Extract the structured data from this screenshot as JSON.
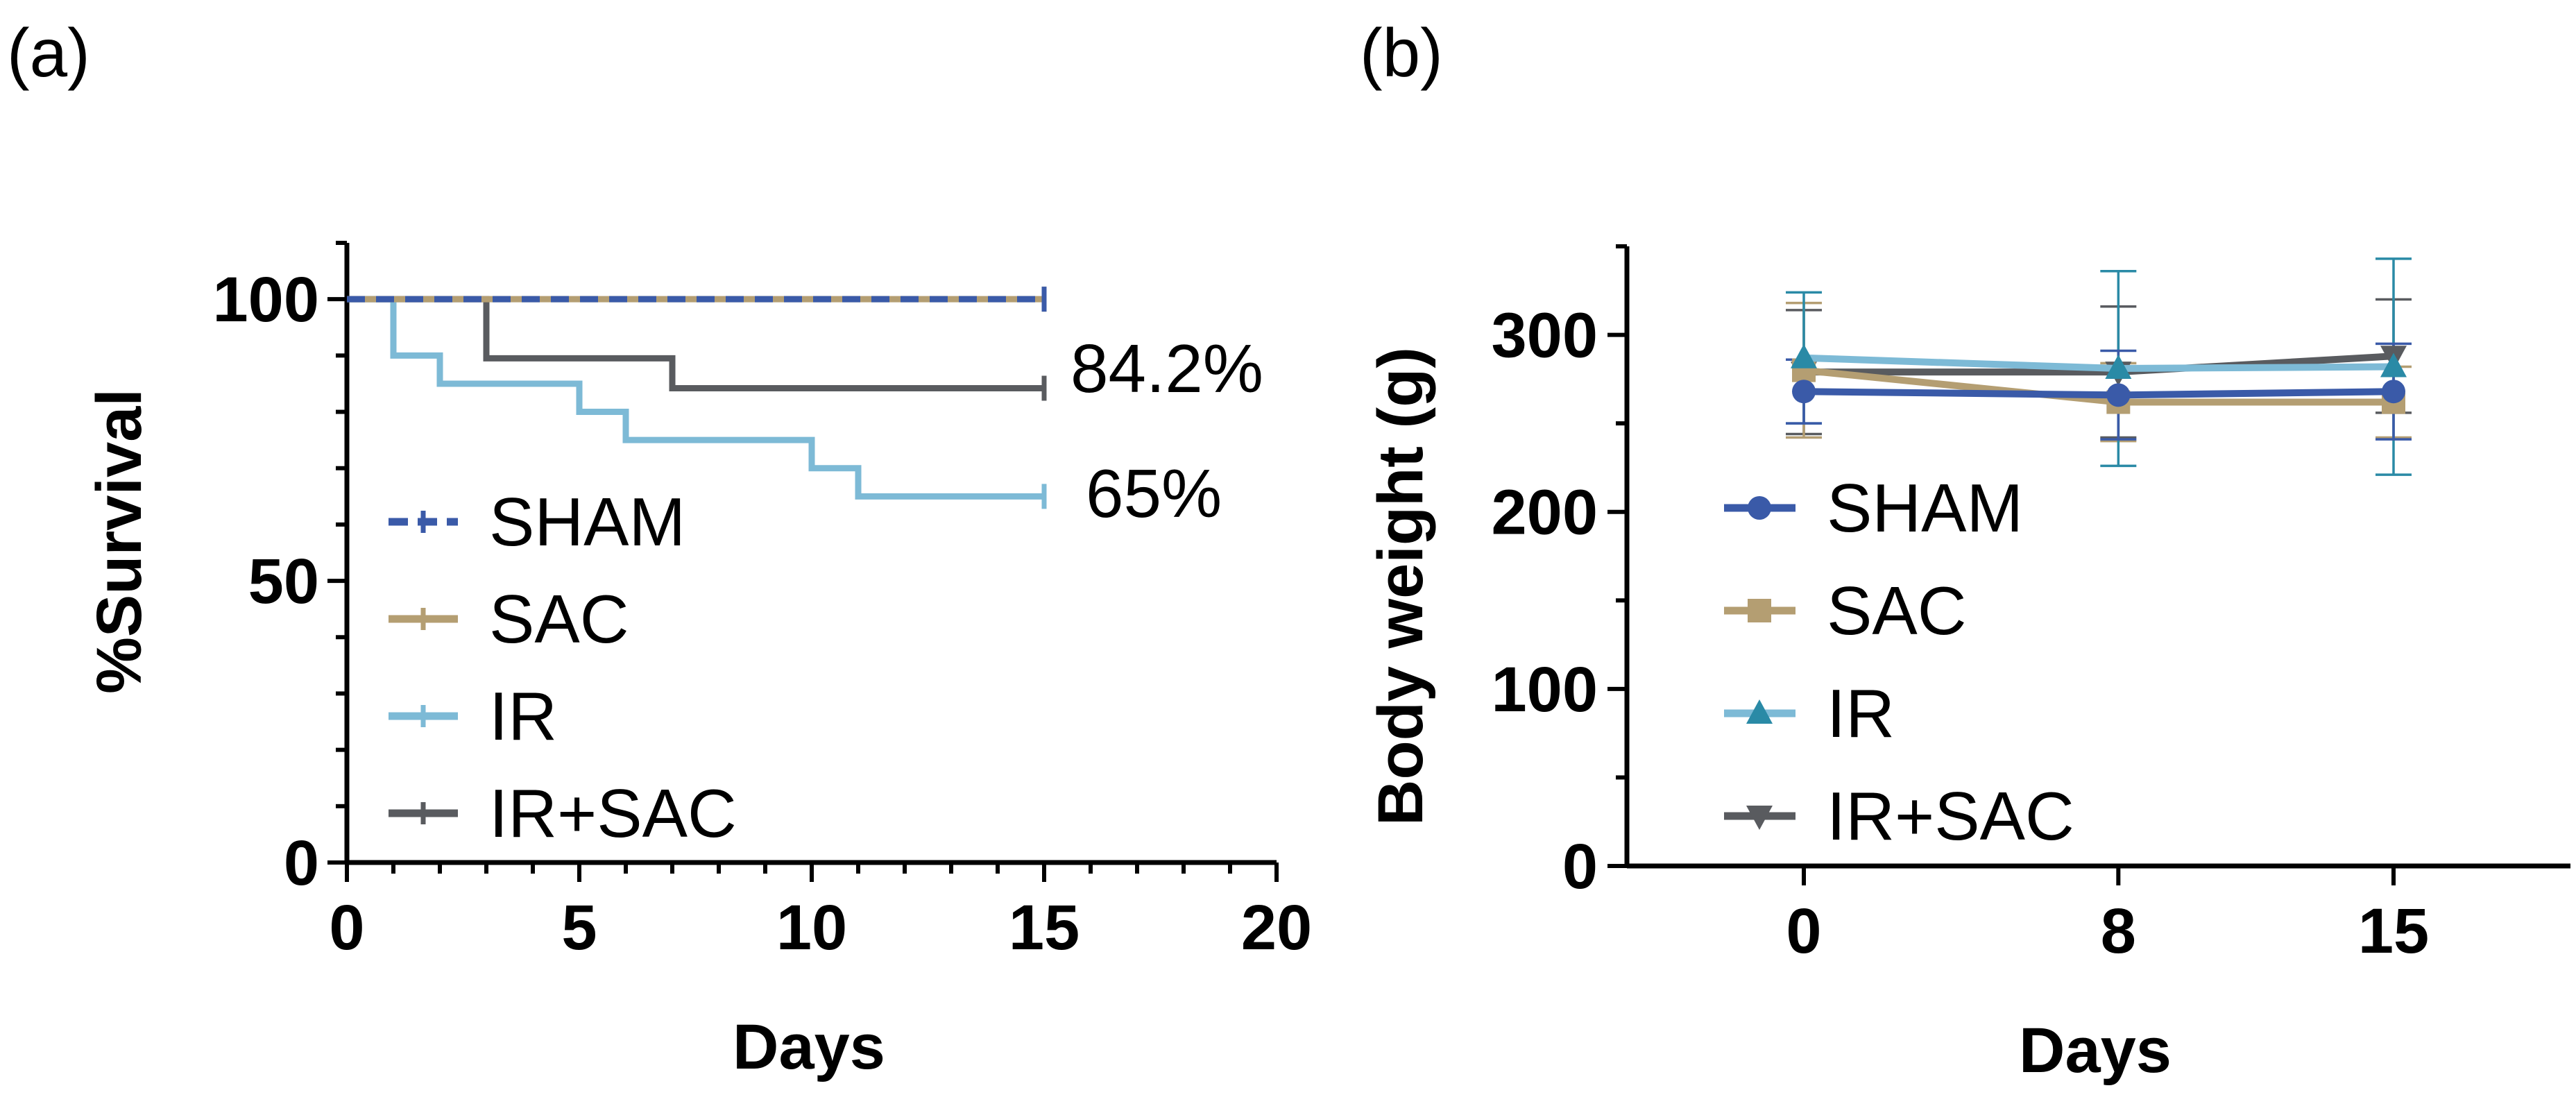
{
  "chart_data": [
    {
      "panel_label": "(a)",
      "type": "line",
      "subtype": "kaplan-meier step",
      "xlabel": "Days",
      "ylabel": "%Survival",
      "xlim": [
        0,
        20
      ],
      "ylim": [
        0,
        110
      ],
      "xticks": [
        0,
        5,
        10,
        15,
        20
      ],
      "yticks": [
        0,
        50,
        100
      ],
      "series": [
        {
          "name": "SHAM",
          "color": "#3a5aa8",
          "dashed": true,
          "steps": [
            [
              0,
              100
            ],
            [
              15,
              100
            ]
          ]
        },
        {
          "name": "SAC",
          "color": "#b49e72",
          "dashed": false,
          "steps": [
            [
              0,
              100
            ],
            [
              15,
              100
            ]
          ]
        },
        {
          "name": "IR",
          "color": "#7dbad6",
          "dashed": false,
          "steps": [
            [
              0,
              100
            ],
            [
              1,
              90
            ],
            [
              2,
              85
            ],
            [
              5,
              80
            ],
            [
              6,
              75
            ],
            [
              10,
              70
            ],
            [
              11,
              65
            ],
            [
              15,
              65
            ]
          ]
        },
        {
          "name": "IR+SAC",
          "color": "#595b5f",
          "dashed": false,
          "steps": [
            [
              0,
              100
            ],
            [
              3,
              89.5
            ],
            [
              7,
              84.2
            ],
            [
              15,
              84.2
            ]
          ]
        }
      ],
      "annotations": [
        {
          "text": "84.2%",
          "series": "IR+SAC"
        },
        {
          "text": "65%",
          "series": "IR"
        }
      ],
      "legend": "bottom-left inside"
    },
    {
      "panel_label": "(b)",
      "type": "line",
      "subtype": "error-bar line",
      "xlabel": "Days",
      "ylabel": "Body weight (g)",
      "categories": [
        "0",
        "8",
        "15"
      ],
      "x": [
        0,
        8,
        15
      ],
      "xlim": [
        -4.5,
        19.5
      ],
      "ylim": [
        0,
        350
      ],
      "yticks": [
        0,
        100,
        200,
        300
      ],
      "series": [
        {
          "name": "SHAM",
          "color": "#3a5aa8",
          "marker": "circle",
          "values": [
            268,
            266,
            268
          ],
          "errors": [
            18,
            25,
            27
          ]
        },
        {
          "name": "SAC",
          "color": "#b49e72",
          "marker": "square",
          "values": [
            280,
            262,
            262
          ],
          "errors": [
            38,
            22,
            20
          ]
        },
        {
          "name": "IR",
          "color": "#7dbad6",
          "marker": "triangle-up",
          "errorColor": "#2a8aa6",
          "values": [
            287,
            281,
            282
          ],
          "errors": [
            37,
            55,
            61
          ]
        },
        {
          "name": "IR+SAC",
          "color": "#595b5f",
          "marker": "triangle-down",
          "values": [
            279,
            279,
            288
          ],
          "errors": [
            35,
            37,
            32
          ]
        }
      ],
      "legend": "bottom-left inside"
    }
  ]
}
